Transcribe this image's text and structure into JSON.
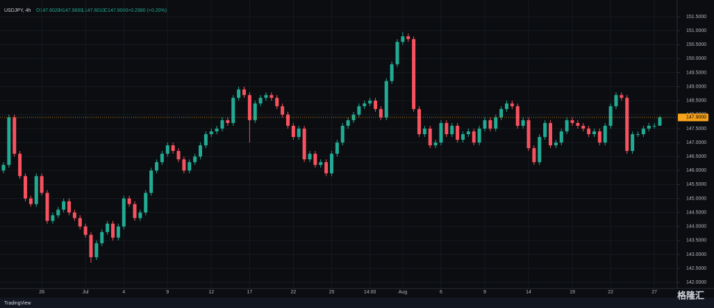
{
  "chart_data": {
    "type": "candlestick",
    "header": {
      "symbol": "USDJPY, 4h",
      "open": "O147.6020",
      "high": "H147.9600",
      "low": "L147.6010",
      "close": "C147.9000",
      "change": "+0.2980 (+0.20%)"
    },
    "categories": [
      null,
      null,
      null,
      null,
      null,
      null,
      null,
      "26",
      null,
      null,
      null,
      null,
      null,
      null,
      null,
      "Jul",
      null,
      null,
      null,
      null,
      null,
      null,
      "4",
      null,
      null,
      null,
      null,
      null,
      null,
      null,
      "9",
      null,
      null,
      null,
      null,
      null,
      null,
      null,
      "12",
      null,
      null,
      null,
      null,
      null,
      null,
      "17",
      null,
      null,
      null,
      null,
      null,
      null,
      null,
      "22",
      null,
      null,
      null,
      null,
      null,
      null,
      "25",
      null,
      null,
      null,
      null,
      null,
      null,
      "14:00",
      null,
      null,
      null,
      null,
      null,
      "Aug",
      null,
      null,
      null,
      null,
      null,
      null,
      "6",
      null,
      null,
      null,
      null,
      null,
      null,
      null,
      "9",
      null,
      null,
      null,
      null,
      null,
      null,
      null,
      "14",
      null,
      null,
      null,
      null,
      null,
      null,
      null,
      "19",
      null,
      null,
      null,
      null,
      null,
      null,
      "22",
      null,
      null,
      null,
      null,
      null,
      null,
      null,
      "27",
      null
    ],
    "open": [
      146.0,
      146.2,
      147.9,
      146.6,
      145.8,
      145.0,
      144.8,
      145.8,
      145.2,
      144.2,
      144.4,
      144.6,
      144.9,
      144.5,
      144.3,
      144.0,
      143.7,
      142.9,
      143.4,
      143.8,
      144.1,
      143.6,
      144.0,
      145.0,
      144.8,
      144.3,
      144.5,
      145.2,
      146.0,
      146.3,
      146.6,
      146.9,
      146.7,
      146.4,
      146.0,
      146.3,
      146.5,
      146.9,
      147.3,
      147.4,
      147.5,
      147.8,
      147.7,
      148.6,
      148.9,
      148.7,
      147.8,
      148.4,
      148.6,
      148.7,
      148.6,
      148.3,
      148.0,
      147.6,
      147.2,
      147.5,
      146.4,
      146.6,
      146.2,
      146.3,
      145.9,
      146.6,
      147.0,
      147.6,
      147.8,
      148.0,
      148.3,
      148.4,
      148.5,
      148.2,
      147.9,
      149.2,
      149.8,
      150.6,
      150.8,
      150.7,
      148.2,
      147.3,
      147.5,
      146.9,
      147.0,
      147.7,
      147.3,
      147.6,
      147.1,
      147.3,
      147.4,
      147.0,
      147.5,
      147.8,
      147.5,
      147.9,
      148.2,
      148.4,
      148.3,
      147.6,
      147.8,
      146.8,
      146.3,
      147.2,
      147.7,
      146.9,
      147.0,
      147.4,
      147.8,
      147.7,
      147.6,
      147.5,
      147.3,
      147.4,
      147.0,
      147.6,
      148.3,
      148.7,
      148.6,
      146.7,
      147.3,
      147.3,
      147.5,
      147.6,
      147.602
    ],
    "high": [
      146.3,
      148.0,
      148.0,
      146.7,
      145.9,
      145.1,
      145.9,
      145.9,
      145.3,
      144.5,
      144.7,
      145.0,
      145.0,
      144.6,
      144.4,
      144.1,
      143.8,
      143.5,
      143.9,
      144.2,
      144.2,
      144.1,
      145.1,
      145.1,
      144.9,
      144.6,
      145.3,
      146.1,
      146.4,
      146.7,
      147.0,
      147.0,
      146.8,
      146.5,
      146.4,
      146.6,
      147.0,
      147.4,
      147.5,
      147.6,
      147.9,
      147.9,
      148.7,
      149.0,
      149.0,
      148.8,
      148.5,
      148.7,
      148.8,
      148.8,
      148.7,
      148.4,
      148.1,
      147.7,
      147.6,
      147.6,
      146.7,
      146.7,
      146.4,
      146.4,
      146.7,
      147.1,
      147.7,
      147.9,
      148.1,
      148.4,
      148.5,
      148.6,
      148.6,
      148.3,
      149.3,
      149.9,
      150.7,
      150.95,
      150.9,
      150.8,
      148.3,
      147.6,
      147.6,
      147.1,
      147.8,
      147.8,
      147.7,
      147.7,
      147.4,
      147.5,
      147.5,
      147.6,
      147.9,
      147.9,
      148.0,
      148.3,
      148.5,
      148.5,
      148.4,
      147.9,
      147.9,
      146.9,
      147.3,
      147.8,
      147.8,
      147.1,
      147.5,
      147.9,
      147.9,
      147.8,
      147.7,
      147.6,
      147.5,
      147.5,
      147.7,
      148.4,
      148.8,
      148.8,
      148.7,
      147.4,
      147.4,
      147.6,
      147.7,
      147.7,
      147.96
    ],
    "low": [
      145.9,
      146.1,
      146.5,
      145.7,
      144.9,
      144.7,
      144.7,
      145.1,
      144.1,
      144.1,
      144.3,
      144.5,
      144.4,
      144.2,
      143.9,
      143.6,
      142.7,
      142.8,
      143.3,
      143.7,
      143.5,
      143.5,
      143.9,
      144.7,
      144.2,
      144.2,
      144.4,
      145.1,
      145.9,
      146.2,
      146.5,
      146.6,
      146.3,
      145.9,
      145.9,
      146.2,
      146.4,
      146.8,
      147.2,
      147.3,
      147.4,
      147.6,
      147.6,
      148.5,
      148.6,
      147.0,
      147.7,
      148.3,
      148.5,
      148.5,
      148.2,
      147.9,
      147.5,
      147.1,
      147.1,
      146.3,
      146.3,
      146.1,
      146.1,
      145.8,
      145.8,
      146.5,
      146.9,
      147.5,
      147.7,
      147.9,
      148.2,
      148.3,
      148.1,
      147.8,
      147.8,
      149.1,
      149.7,
      150.5,
      150.6,
      148.1,
      147.2,
      147.2,
      146.8,
      146.8,
      146.9,
      147.2,
      147.2,
      147.0,
      147.0,
      147.2,
      146.9,
      146.9,
      147.4,
      147.4,
      147.4,
      147.8,
      148.1,
      148.2,
      147.5,
      147.5,
      146.7,
      146.2,
      146.2,
      147.1,
      146.8,
      146.8,
      146.9,
      147.3,
      147.6,
      147.5,
      147.4,
      147.2,
      147.2,
      146.9,
      146.9,
      147.5,
      148.2,
      148.5,
      146.6,
      146.6,
      147.2,
      147.2,
      147.4,
      147.5,
      147.601
    ],
    "close": [
      146.2,
      147.9,
      146.6,
      145.8,
      145.0,
      144.8,
      145.8,
      145.2,
      144.2,
      144.4,
      144.6,
      144.9,
      144.5,
      144.3,
      144.0,
      143.7,
      142.9,
      143.4,
      143.8,
      144.1,
      143.6,
      144.0,
      145.0,
      144.8,
      144.3,
      144.5,
      145.2,
      146.0,
      146.3,
      146.6,
      146.9,
      146.7,
      146.4,
      146.0,
      146.3,
      146.5,
      146.9,
      147.3,
      147.4,
      147.5,
      147.8,
      147.7,
      148.6,
      148.9,
      148.7,
      147.8,
      148.4,
      148.6,
      148.7,
      148.6,
      148.3,
      148.0,
      147.6,
      147.2,
      147.5,
      146.4,
      146.6,
      146.2,
      146.3,
      145.9,
      146.6,
      147.0,
      147.6,
      147.8,
      148.0,
      148.3,
      148.4,
      148.5,
      148.2,
      147.9,
      149.2,
      149.8,
      150.6,
      150.8,
      150.7,
      148.2,
      147.3,
      147.5,
      146.9,
      147.0,
      147.7,
      147.3,
      147.6,
      147.1,
      147.3,
      147.4,
      147.0,
      147.5,
      147.8,
      147.5,
      147.9,
      148.2,
      148.4,
      148.3,
      147.6,
      147.8,
      146.8,
      146.3,
      147.2,
      147.7,
      146.9,
      147.0,
      147.4,
      147.8,
      147.7,
      147.6,
      147.5,
      147.3,
      147.4,
      147.0,
      147.6,
      148.3,
      148.7,
      148.6,
      146.7,
      147.3,
      147.3,
      147.5,
      147.6,
      147.6,
      147.9
    ],
    "up_color": "#22ab94",
    "down_color": "#f7525f",
    "ylim": [
      141.78,
      151.85
    ],
    "yticks": [
      {
        "value": 142.0,
        "label": "142.0000"
      },
      {
        "value": 142.5,
        "label": "142.5000"
      },
      {
        "value": 143.0,
        "label": "143.0000"
      },
      {
        "value": 143.5,
        "label": "143.5000"
      },
      {
        "value": 144.0,
        "label": "144.0000"
      },
      {
        "value": 144.5,
        "label": "144.5000"
      },
      {
        "value": 145.0,
        "label": "145.0000"
      },
      {
        "value": 145.5,
        "label": "145.5000"
      },
      {
        "value": 146.0,
        "label": "146.0000"
      },
      {
        "value": 146.5,
        "label": "146.5000"
      },
      {
        "value": 147.0,
        "label": "147.0000"
      },
      {
        "value": 147.5,
        "label": "147.5000"
      },
      {
        "value": 148.0,
        "label": "148.0000"
      },
      {
        "value": 148.5,
        "label": "148.5000"
      },
      {
        "value": 149.0,
        "label": "149.0000"
      },
      {
        "value": 149.5,
        "label": "149.5000"
      },
      {
        "value": 150.0,
        "label": "150.0000"
      },
      {
        "value": 150.5,
        "label": "150.5000"
      },
      {
        "value": 151.0,
        "label": "151.0000"
      },
      {
        "value": 151.5,
        "label": "151.5000"
      }
    ],
    "last_price": {
      "value": 147.9,
      "label": "147.9000",
      "color": "#f7a21b"
    },
    "grid": true
  },
  "footer": {
    "brand": "TradingView",
    "watermark": "格隆汇"
  }
}
